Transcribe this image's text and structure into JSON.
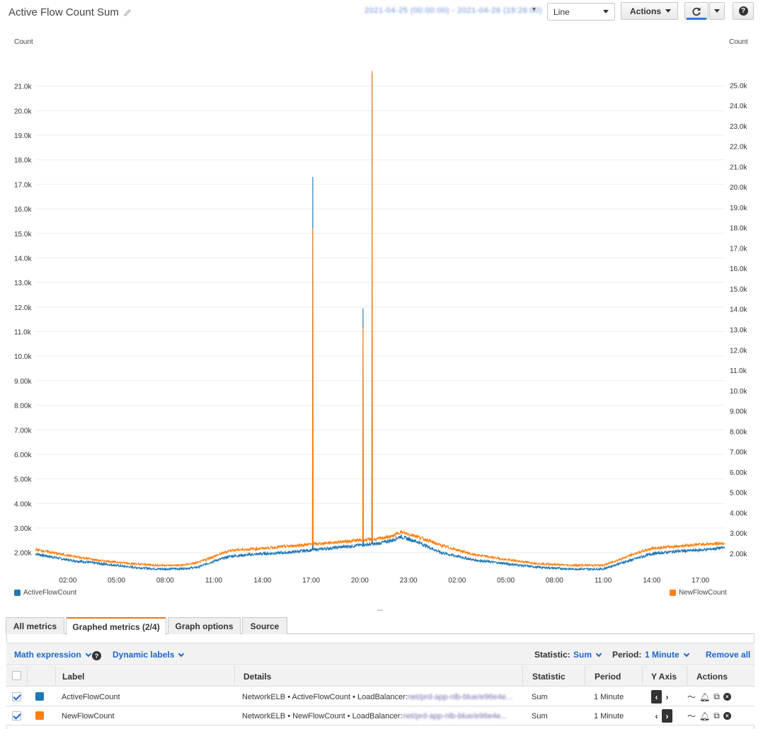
{
  "header": {
    "title": "Active Flow Count Sum",
    "date_range": "2021-04-25 (00:00:00) - 2021-04-26 (19:26:00)",
    "chart_type_select": "Line",
    "actions_label": "Actions"
  },
  "chart_data": {
    "type": "line",
    "ylabel_left": "Count",
    "ylabel_right": "Count",
    "x_ticks": [
      "02:00",
      "05:00",
      "08:00",
      "11:00",
      "14:00",
      "17:00",
      "20:00",
      "23:00",
      "02:00",
      "05:00",
      "08:00",
      "11:00",
      "14:00",
      "17:00"
    ],
    "x_range_hours": [
      0,
      42.5
    ],
    "left_axis": {
      "ticks": [
        "2.00k",
        "3.00k",
        "4.00k",
        "5.00k",
        "6.00k",
        "7.00k",
        "8.00k",
        "9.00k",
        "10.0k",
        "11.0k",
        "12.0k",
        "13.0k",
        "14.0k",
        "15.0k",
        "16.0k",
        "17.0k",
        "18.0k",
        "19.0k",
        "20.0k",
        "21.0k"
      ],
      "range": [
        1300,
        22200
      ]
    },
    "right_axis": {
      "ticks": [
        "2.00k",
        "3.00k",
        "4.00k",
        "5.00k",
        "6.00k",
        "7.00k",
        "8.00k",
        "9.00k",
        "10.0k",
        "11.0k",
        "12.0k",
        "13.0k",
        "14.0k",
        "15.0k",
        "16.0k",
        "17.0k",
        "18.0k",
        "19.0k",
        "20.0k",
        "21.0k",
        "22.0k",
        "23.0k",
        "24.0k",
        "25.0k"
      ],
      "range": [
        1200,
        26400
      ]
    },
    "series": [
      {
        "name": "ActiveFlowCount",
        "axis": "left",
        "color": "#1f77b4",
        "baseline": [
          [
            0,
            1950
          ],
          [
            2,
            1700
          ],
          [
            4,
            1550
          ],
          [
            6,
            1400
          ],
          [
            7.5,
            1330
          ],
          [
            9,
            1340
          ],
          [
            10,
            1400
          ],
          [
            11,
            1650
          ],
          [
            12,
            1850
          ],
          [
            13,
            1900
          ],
          [
            14,
            1950
          ],
          [
            15.5,
            2000
          ],
          [
            17,
            2100
          ],
          [
            18.5,
            2200
          ],
          [
            20,
            2300
          ],
          [
            21,
            2350
          ],
          [
            22,
            2500
          ],
          [
            22.5,
            2650
          ],
          [
            23.5,
            2450
          ],
          [
            25,
            2000
          ],
          [
            27,
            1700
          ],
          [
            29,
            1550
          ],
          [
            31,
            1400
          ],
          [
            33,
            1330
          ],
          [
            35,
            1330
          ],
          [
            36,
            1550
          ],
          [
            37,
            1750
          ],
          [
            38,
            1950
          ],
          [
            39.5,
            2050
          ],
          [
            41,
            2100
          ],
          [
            42.5,
            2200
          ]
        ],
        "spikes": [
          [
            17.1,
            17300
          ],
          [
            20.2,
            11950
          ],
          [
            20.75,
            21500
          ]
        ]
      },
      {
        "name": "NewFlowCount",
        "axis": "right",
        "color": "#ff7f0e",
        "baseline": [
          [
            0,
            2200
          ],
          [
            2,
            1900
          ],
          [
            4,
            1650
          ],
          [
            6,
            1500
          ],
          [
            7.5,
            1420
          ],
          [
            9,
            1420
          ],
          [
            10,
            1550
          ],
          [
            11,
            1850
          ],
          [
            12,
            2150
          ],
          [
            13,
            2200
          ],
          [
            14,
            2250
          ],
          [
            15.5,
            2350
          ],
          [
            17,
            2450
          ],
          [
            18.5,
            2550
          ],
          [
            20,
            2650
          ],
          [
            21,
            2700
          ],
          [
            22,
            2850
          ],
          [
            22.5,
            3050
          ],
          [
            23.5,
            2850
          ],
          [
            25,
            2400
          ],
          [
            27,
            1950
          ],
          [
            29,
            1700
          ],
          [
            31,
            1500
          ],
          [
            33,
            1420
          ],
          [
            35,
            1420
          ],
          [
            36,
            1700
          ],
          [
            37,
            2000
          ],
          [
            38,
            2250
          ],
          [
            39.5,
            2350
          ],
          [
            41,
            2450
          ],
          [
            42.5,
            2500
          ]
        ],
        "spikes": [
          [
            17.1,
            18000
          ],
          [
            20.2,
            13100
          ],
          [
            20.75,
            25700
          ]
        ]
      }
    ],
    "legend": [
      "ActiveFlowCount",
      "NewFlowCount"
    ]
  },
  "tabs": [
    "All metrics",
    "Graphed metrics (2/4)",
    "Graph options",
    "Source"
  ],
  "toolbar": {
    "math_expression": "Math expression",
    "dynamic_labels": "Dynamic labels",
    "statistic_label": "Statistic:",
    "statistic_value": "Sum",
    "period_label": "Period:",
    "period_value": "1 Minute",
    "remove_all": "Remove all"
  },
  "table": {
    "headers": [
      "Label",
      "Details",
      "Statistic",
      "Period",
      "Y Axis",
      "Actions"
    ],
    "rows": [
      {
        "label": "ActiveFlowCount",
        "color": "#1f77b4",
        "details_prefix": "NetworkELB • ActiveFlowCount • LoadBalancer: ",
        "details_hidden": "net/prd-app-nlb-blue/e96e4e...",
        "statistic": "Sum",
        "period": "1 Minute",
        "y_axis": "left"
      },
      {
        "label": "NewFlowCount",
        "color": "#ff7f0e",
        "details_prefix": "NetworkELB • NewFlowCount • LoadBalancer: ",
        "details_hidden": "net/prd-app-nlb-blue/e96e4e...",
        "statistic": "Sum",
        "period": "1 Minute",
        "y_axis": "right"
      }
    ]
  }
}
